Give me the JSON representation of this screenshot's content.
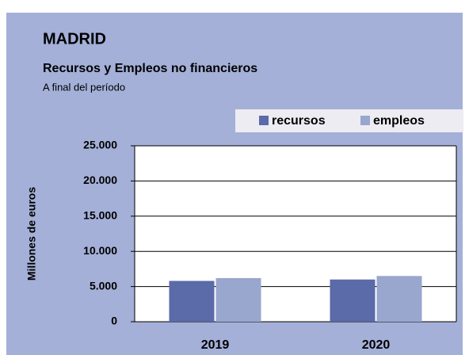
{
  "chart_data": {
    "type": "bar",
    "title": "MADRID",
    "subtitle": "Recursos y Empleos no financieros",
    "note": "A final del período",
    "y_label": "Millones de euros",
    "categories": [
      "2019",
      "2020"
    ],
    "series": [
      {
        "name": "recursos",
        "color": "#5b6aa8",
        "values": [
          5800,
          6000
        ]
      },
      {
        "name": "empleos",
        "color": "#99a6ce",
        "values": [
          6200,
          6500
        ]
      }
    ],
    "ylim": [
      0,
      25000
    ],
    "yticks": [
      0,
      {
        "value": 5000,
        "label": "5.000"
      },
      {
        "value": 10000,
        "label": "10.000"
      },
      {
        "value": 15000,
        "label": "15.000"
      },
      {
        "value": 20000,
        "label": "20.000"
      },
      {
        "value": 25000,
        "label": "25.000"
      }
    ],
    "grid": true,
    "legend": "top-right"
  }
}
